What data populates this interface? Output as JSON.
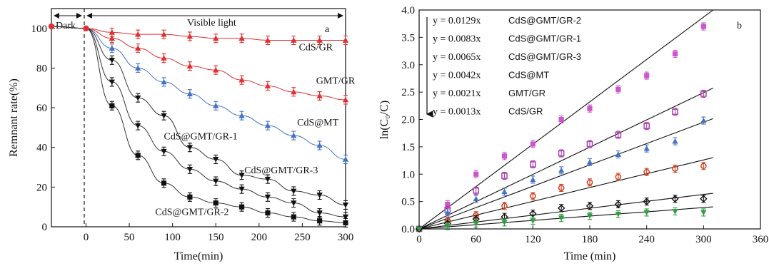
{
  "chart_data": [
    {
      "type": "line",
      "panel_label": "a",
      "xlabel": "Time(min)",
      "ylabel": "Remnant rate(%)",
      "xlim": [
        -40,
        300
      ],
      "ylim": [
        0,
        110
      ],
      "xticks": [
        0,
        50,
        100,
        150,
        200,
        250,
        300
      ],
      "yticks": [
        0,
        20,
        40,
        60,
        80,
        100
      ],
      "region_labels": {
        "dark": "Dark",
        "light": "Visible light"
      },
      "x": [
        -40,
        0,
        30,
        60,
        90,
        120,
        150,
        180,
        210,
        240,
        270,
        300
      ],
      "series": [
        {
          "name": "CdS/GR",
          "color": "#e03030",
          "marker": "triangle",
          "values": [
            101,
            100,
            98,
            97,
            97,
            96,
            95,
            95,
            94,
            94,
            94,
            94
          ]
        },
        {
          "name": "GMT/GR",
          "color": "#e03030",
          "marker": "triangle",
          "values": [
            101,
            100,
            95,
            90,
            85,
            81,
            79,
            74,
            71,
            68,
            66,
            64
          ]
        },
        {
          "name": "CdS@MT",
          "color": "#4472c4",
          "marker": "triangle",
          "values": [
            101,
            100,
            90,
            80,
            73,
            67,
            61,
            56,
            51,
            46,
            41,
            34
          ]
        },
        {
          "name": "CdS@GMT/GR-3",
          "color": "#111111",
          "marker": "triangle-down",
          "values": [
            101,
            100,
            84,
            65,
            56,
            40,
            34,
            26,
            24,
            18,
            16,
            11
          ]
        },
        {
          "name": "CdS@GMT/GR-1",
          "color": "#111111",
          "marker": "triangle-down",
          "values": [
            101,
            100,
            73,
            51,
            38,
            29,
            23,
            19,
            15,
            12,
            7,
            5
          ]
        },
        {
          "name": "CdS@GMT/GR-2",
          "color": "#111111",
          "marker": "square",
          "values": [
            101,
            100,
            61,
            36,
            22,
            15,
            12,
            10,
            7,
            5,
            3,
            2
          ]
        }
      ],
      "curve_labels": [
        "CdS/GR",
        "GMT/GR",
        "CdS@MT",
        "CdS@GMT/GR-1",
        "CdS@GMT/GR-3",
        "CdS@GMT/GR-2"
      ]
    },
    {
      "type": "scatter",
      "panel_label": "b",
      "xlabel": "Time (min)",
      "ylabel": "ln(C₀/C)",
      "xlim": [
        0,
        360
      ],
      "ylim": [
        0,
        4.0
      ],
      "xticks": [
        0,
        60,
        120,
        180,
        240,
        300,
        360
      ],
      "yticks": [
        0.0,
        0.5,
        1.0,
        1.5,
        2.0,
        2.5,
        3.0,
        3.5,
        4.0
      ],
      "x": [
        0,
        30,
        60,
        90,
        120,
        150,
        180,
        210,
        240,
        270,
        300
      ],
      "series": [
        {
          "name": "CdS@GMT/GR-2",
          "equation": "y = 0.0129x",
          "slope": 0.0129,
          "color": "#cc55cc",
          "marker": "square-filled",
          "values": [
            0,
            0.45,
            1.0,
            1.33,
            1.55,
            2.0,
            2.2,
            2.55,
            2.8,
            3.2,
            3.7
          ]
        },
        {
          "name": "CdS@GMT/GR-1",
          "equation": "y = 0.0083x",
          "slope": 0.0083,
          "color": "#aa44aa",
          "marker": "square-open",
          "values": [
            0,
            0.35,
            0.7,
            0.97,
            1.18,
            1.38,
            1.55,
            1.72,
            1.88,
            2.14,
            2.47
          ]
        },
        {
          "name": "CdS@GMT/GR-3",
          "equation": "y = 0.0065x",
          "slope": 0.0065,
          "color": "#4472c4",
          "marker": "triangle",
          "values": [
            0,
            0.3,
            0.55,
            0.68,
            0.9,
            1.07,
            1.22,
            1.36,
            1.47,
            1.6,
            1.98
          ]
        },
        {
          "name": "CdS@MT",
          "equation": "y = 0.0042x",
          "slope": 0.0042,
          "color": "#d04020",
          "marker": "circle-open",
          "values": [
            0,
            0.15,
            0.25,
            0.42,
            0.6,
            0.75,
            0.85,
            0.95,
            1.04,
            1.1,
            1.15
          ]
        },
        {
          "name": "GMT/GR",
          "equation": "y = 0.0021x",
          "slope": 0.0021,
          "color": "#111111",
          "marker": "diamond-open",
          "values": [
            0,
            0.1,
            0.18,
            0.22,
            0.28,
            0.38,
            0.42,
            0.45,
            0.5,
            0.55,
            0.55
          ]
        },
        {
          "name": "CdS/GR",
          "equation": "y = 0.0013x",
          "slope": 0.0013,
          "color": "#2e9e3e",
          "marker": "triangle-down",
          "values": [
            0,
            0.05,
            0.1,
            0.12,
            0.15,
            0.2,
            0.24,
            0.27,
            0.3,
            0.32,
            0.3
          ]
        }
      ]
    }
  ]
}
